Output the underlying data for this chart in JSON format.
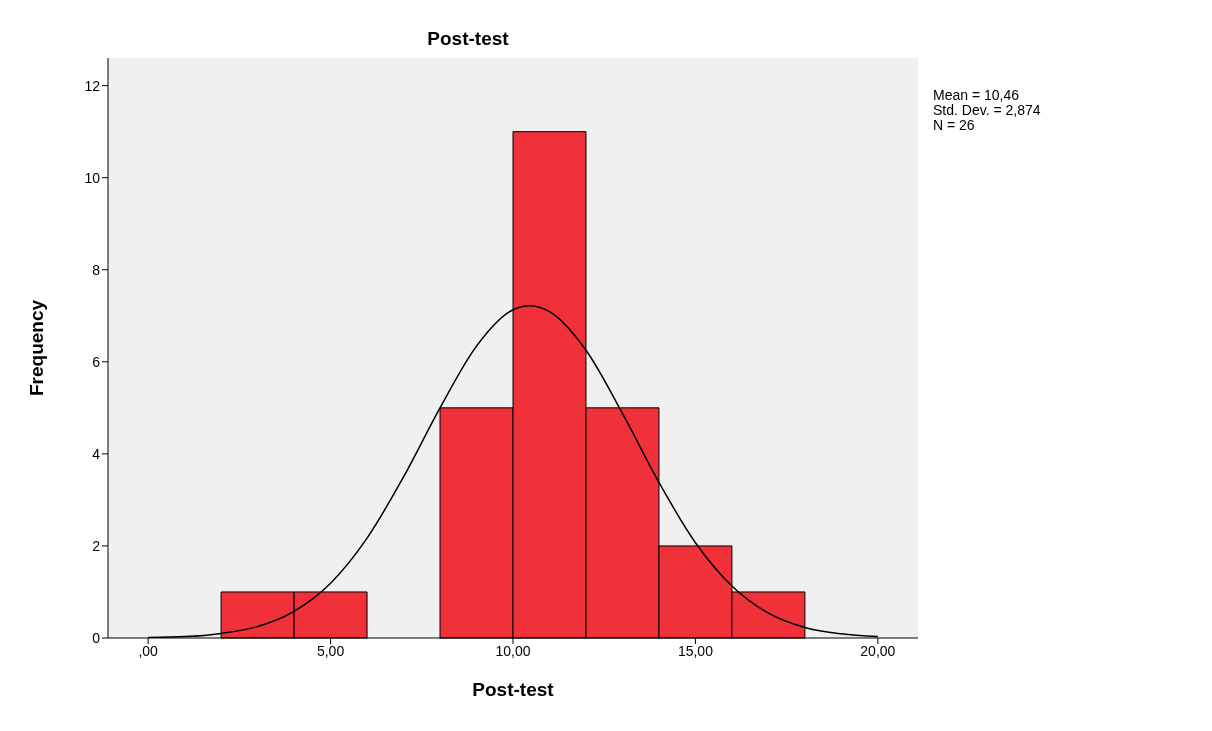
{
  "chart_data": {
    "type": "histogram",
    "title": "Post-test",
    "xlabel": "Post-test",
    "ylabel": "Frequency",
    "bins": [
      2,
      4,
      6,
      8,
      10,
      12,
      14,
      16,
      18
    ],
    "values": [
      1,
      1,
      0,
      5,
      11,
      5,
      2,
      1
    ],
    "color": "#f0313a",
    "series": [
      {
        "type": "line",
        "color": "#000000",
        "x": [
          0,
          1,
          2,
          3,
          4,
          5,
          6,
          7,
          8,
          9,
          10,
          10.46,
          11,
          12,
          13,
          14,
          15,
          16,
          17,
          18,
          19,
          20
        ],
        "values": [
          0.01,
          0.03,
          0.1,
          0.25,
          0.58,
          1.19,
          2.17,
          3.5,
          5,
          6.34,
          7.13,
          7.22,
          7.09,
          6.25,
          4.88,
          3.38,
          2.07,
          1.13,
          0.54,
          0.23,
          0.09,
          0.03
        ]
      }
    ],
    "xlim": [
      -1.1,
      21.1
    ],
    "xticks": [
      {
        "value": 0,
        "label": ",00"
      },
      {
        "value": 5,
        "label": "5,00"
      },
      {
        "value": 10,
        "label": "10,00"
      },
      {
        "value": 15,
        "label": "15,00"
      },
      {
        "value": 20,
        "label": "20,00"
      }
    ],
    "ylim": [
      0,
      12.6
    ],
    "yticks": [
      0,
      2,
      4,
      6,
      8,
      10,
      12
    ],
    "annotations": [
      "Mean = 10,46",
      "Std. Dev. = 2,874",
      "N = 26"
    ],
    "grid": false,
    "marker": "none",
    "line_style": "solid"
  }
}
